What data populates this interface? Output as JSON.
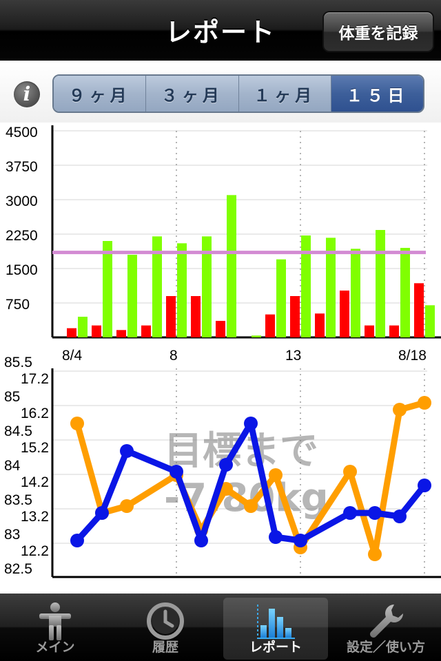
{
  "navbar": {
    "title": "レポート",
    "record_button": "体重を記録"
  },
  "info_button": "i",
  "range_selector": {
    "options": [
      "９ヶ月",
      "３ヶ月",
      "１ヶ月",
      "１５日"
    ],
    "selected": 3
  },
  "calorie_chart": {
    "y_ticks": [
      "4500",
      "3750",
      "3000",
      "2250",
      "1500",
      "750"
    ],
    "ylim": [
      0,
      4500
    ],
    "target_line": 1850,
    "colors": {
      "burned": "#ff0000",
      "intake": "#80ff00",
      "target": "#d38bd3"
    }
  },
  "date_axis": {
    "labels": [
      "8/4",
      "8",
      "13",
      "8/18"
    ]
  },
  "weight_chart": {
    "left_ticks_weight": [
      "85.5",
      "85",
      "84.5",
      "84",
      "83.5",
      "83",
      "82.5"
    ],
    "left_ticks_fat": [
      "17.2",
      "16.2",
      "15.2",
      "14.2",
      "13.2",
      "12.2"
    ],
    "overlay_line1": "目標まで",
    "overlay_line2": "-7.80kg",
    "colors": {
      "weight": "#ff9e00",
      "fat": "#0a16e6"
    }
  },
  "chart_data": [
    {
      "type": "bar",
      "categories": [
        "8/4",
        "8/5",
        "8/6",
        "8/7",
        "8/8",
        "8/9",
        "8/10",
        "8/11",
        "8/12",
        "8/13",
        "8/14",
        "8/15",
        "8/16",
        "8/17",
        "8/18"
      ],
      "series": [
        {
          "values": [
            200,
            260,
            160,
            260,
            900,
            900,
            360,
            0,
            500,
            900,
            520,
            1020,
            260,
            260,
            1180
          ]
        },
        {
          "values": [
            450,
            2100,
            1800,
            2200,
            2050,
            2200,
            3100,
            40,
            1700,
            2220,
            2170,
            1930,
            2340,
            1950,
            700
          ]
        }
      ],
      "ylim": [
        0,
        4500
      ],
      "target": 1850
    },
    {
      "type": "line",
      "x": [
        "8/4",
        "8/5",
        "8/6",
        "8/7",
        "8/8",
        "8/9",
        "8/10",
        "8/11",
        "8/12",
        "8/13",
        "8/14",
        "8/15",
        "8/16",
        "8/17",
        "8/18"
      ],
      "series": [
        {
          "values": [
            84.75,
            83.45,
            83.55,
            null,
            84.0,
            83.2,
            83.8,
            83.55,
            84.0,
            82.95,
            null,
            84.05,
            82.85,
            84.95,
            85.05
          ]
        },
        {
          "values": [
            12.8,
            13.6,
            15.4,
            null,
            14.8,
            12.8,
            15.0,
            16.2,
            12.9,
            12.8,
            null,
            13.6,
            13.6,
            13.5,
            14.4
          ]
        }
      ],
      "ylim_weight": [
        82.5,
        85.5
      ],
      "ylim_fat": [
        11.7,
        17.7
      ]
    }
  ],
  "tabbar": {
    "items": [
      {
        "label": "メイン",
        "icon": "person-icon"
      },
      {
        "label": "履歴",
        "icon": "clock-icon"
      },
      {
        "label": "レポート",
        "icon": "bar-chart-icon"
      },
      {
        "label": "設定／使い方",
        "icon": "wrench-icon"
      }
    ],
    "selected": 2
  }
}
